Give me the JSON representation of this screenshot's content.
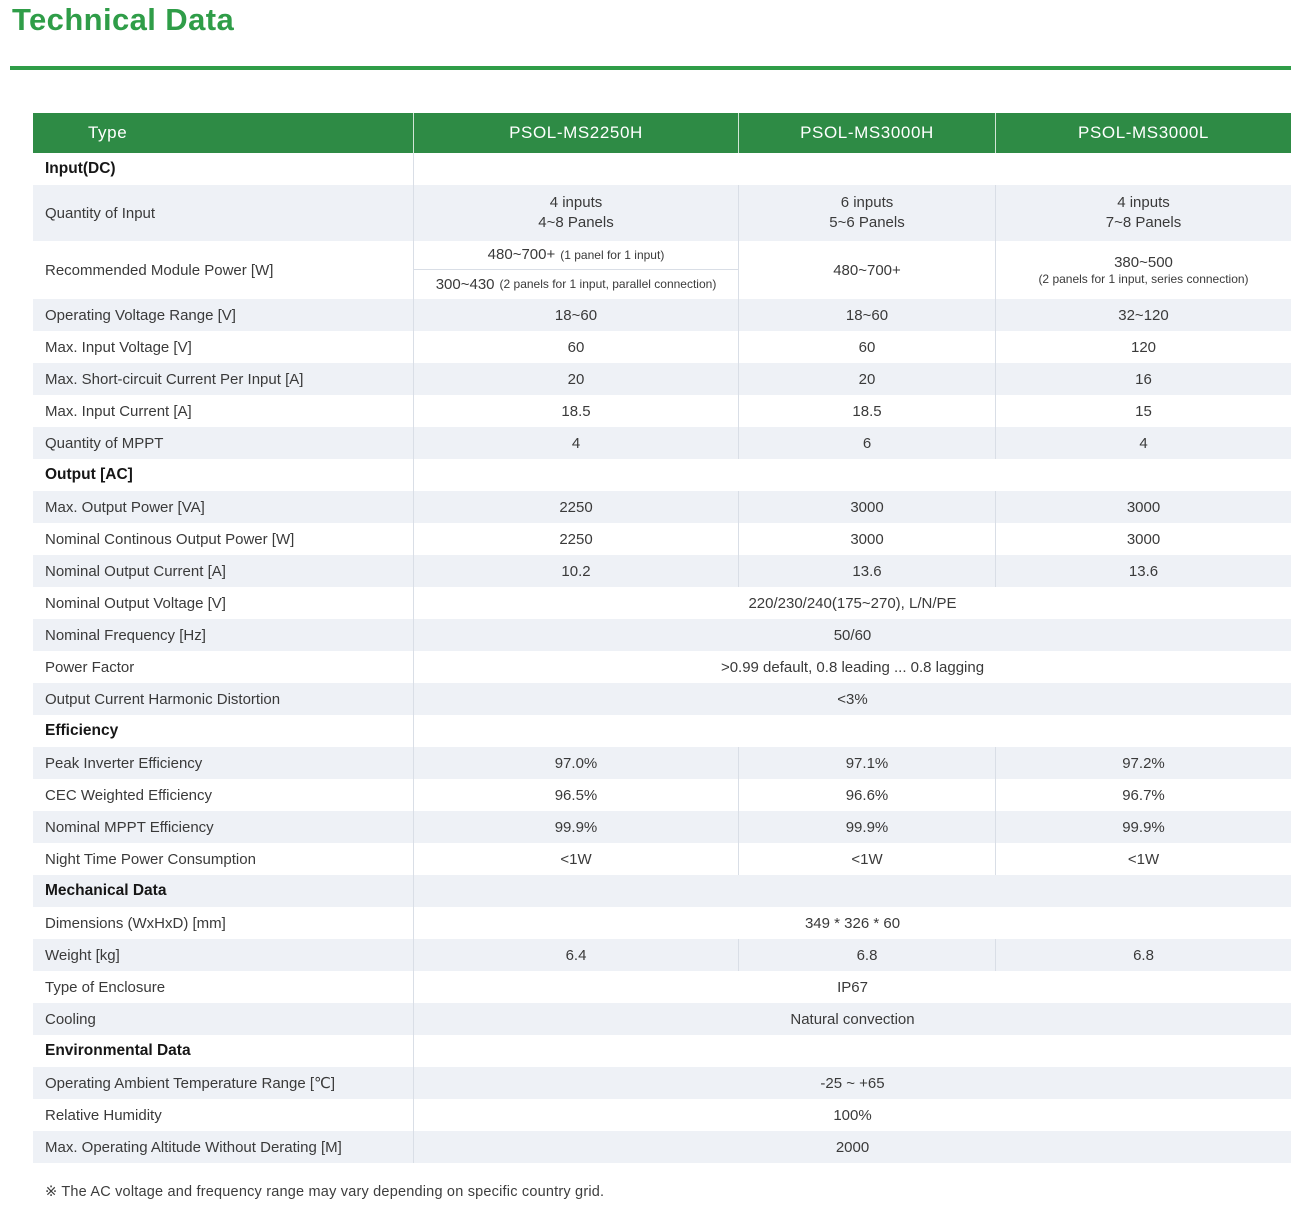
{
  "page": {
    "title": "Technical Data",
    "footnote": "※ The AC voltage and frequency range may vary depending on specific country grid."
  },
  "colors": {
    "title_green": "#2f9d48",
    "header_green": "#2e8b45",
    "header_text": "#ffffff",
    "row_alt": "#eef1f6",
    "divider": "#d9dee6"
  },
  "table": {
    "header": [
      "Type",
      "PSOL-MS2250H",
      "PSOL-MS3000H",
      "PSOL-MS3000L"
    ],
    "rows": [
      {
        "type": "section",
        "label": "Input(DC)"
      },
      {
        "type": "data",
        "label": "Quantity of Input",
        "values": [
          [
            "4 inputs",
            "4~8 Panels"
          ],
          [
            "6 inputs",
            "5~6 Panels"
          ],
          [
            "4 inputs",
            "7~8 Panels"
          ]
        ]
      },
      {
        "type": "module_power",
        "label": "Recommended Module Power [W]",
        "col1_rows": [
          {
            "main": "480~700+",
            "note": "(1 panel for 1 input)"
          },
          {
            "main": "300~430",
            "note": "(2 panels for 1 input, parallel connection)"
          }
        ],
        "col2": "480~700+",
        "col3": {
          "main": "380~500",
          "note": "(2 panels for 1 input, series connection)"
        }
      },
      {
        "type": "data",
        "label": "Operating Voltage Range [V]",
        "values": [
          "18~60",
          "18~60",
          "32~120"
        ]
      },
      {
        "type": "data",
        "label": "Max. Input Voltage [V]",
        "values": [
          "60",
          "60",
          "120"
        ]
      },
      {
        "type": "data",
        "label": "Max. Short-circuit Current Per Input [A]",
        "values": [
          "20",
          "20",
          "16"
        ]
      },
      {
        "type": "data",
        "label": "Max. Input Current [A]",
        "values": [
          "18.5",
          "18.5",
          "15"
        ]
      },
      {
        "type": "data",
        "label": "Quantity of MPPT",
        "values": [
          "4",
          "6",
          "4"
        ]
      },
      {
        "type": "section",
        "label": "Output [AC]"
      },
      {
        "type": "data",
        "label": "Max. Output Power [VA]",
        "values": [
          "2250",
          "3000",
          "3000"
        ]
      },
      {
        "type": "data",
        "label": "Nominal Continous Output Power [W]",
        "values": [
          "2250",
          "3000",
          "3000"
        ]
      },
      {
        "type": "data",
        "label": "Nominal Output Current [A]",
        "values": [
          "10.2",
          "13.6",
          "13.6"
        ]
      },
      {
        "type": "span",
        "label": "Nominal Output Voltage [V]",
        "value": "220/230/240(175~270), L/N/PE"
      },
      {
        "type": "span",
        "label": "Nominal Frequency [Hz]",
        "value": "50/60"
      },
      {
        "type": "span",
        "label": "Power Factor",
        "value": ">0.99 default, 0.8 leading ... 0.8 lagging"
      },
      {
        "type": "span",
        "label": "Output Current Harmonic Distortion",
        "value": "<3%"
      },
      {
        "type": "section",
        "label": "Efficiency"
      },
      {
        "type": "data",
        "label": "Peak Inverter Efficiency",
        "values": [
          "97.0%",
          "97.1%",
          "97.2%"
        ]
      },
      {
        "type": "data",
        "label": "CEC Weighted Efficiency",
        "values": [
          "96.5%",
          "96.6%",
          "96.7%"
        ]
      },
      {
        "type": "data",
        "label": "Nominal MPPT Efficiency",
        "values": [
          "99.9%",
          "99.9%",
          "99.9%"
        ]
      },
      {
        "type": "data",
        "label": "Night Time Power Consumption",
        "values": [
          "<1W",
          "<1W",
          "<1W"
        ]
      },
      {
        "type": "section",
        "label": "Mechanical Data"
      },
      {
        "type": "span",
        "label": "Dimensions (WxHxD) [mm]",
        "value": "349 * 326 * 60"
      },
      {
        "type": "data",
        "label": "Weight [kg]",
        "values": [
          "6.4",
          "6.8",
          "6.8"
        ]
      },
      {
        "type": "span",
        "label": "Type of Enclosure",
        "value": "IP67"
      },
      {
        "type": "span",
        "label": "Cooling",
        "value": "Natural convection"
      },
      {
        "type": "section",
        "label": "Environmental Data"
      },
      {
        "type": "span",
        "label": "Operating Ambient Temperature Range [℃]",
        "value": "-25 ~ +65"
      },
      {
        "type": "span",
        "label": "Relative Humidity",
        "value": "100%"
      },
      {
        "type": "span",
        "label": "Max. Operating Altitude Without Derating [M]",
        "value": "2000"
      }
    ]
  }
}
